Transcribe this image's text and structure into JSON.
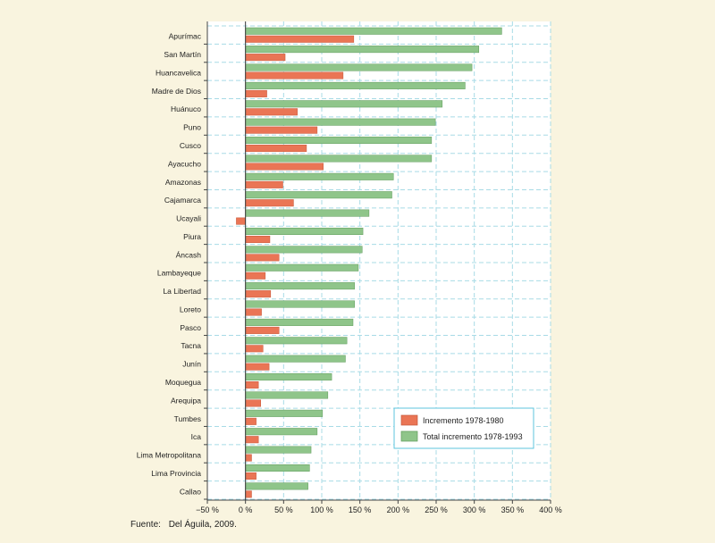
{
  "chart_data": {
    "type": "bar",
    "orientation": "horizontal",
    "categories": [
      "Apurímac",
      "San Martín",
      "Huancavelica",
      "Madre de Dios",
      "Huánuco",
      "Puno",
      "Cusco",
      "Ayacucho",
      "Amazonas",
      "Cajamarca",
      "Ucayali",
      "Piura",
      "Áncash",
      "Lambayeque",
      "La Libertad",
      "Loreto",
      "Pasco",
      "Tacna",
      "Junín",
      "Moquegua",
      "Arequipa",
      "Tumbes",
      "Ica",
      "Lima Metropolitana",
      "Lima Provincia",
      "Callao"
    ],
    "series": [
      {
        "name": "Total incremento 1978-1993",
        "color": "#8fc58a",
        "values": [
          336,
          306,
          297,
          288,
          258,
          249,
          244,
          244,
          194,
          192,
          162,
          154,
          153,
          148,
          143,
          143,
          141,
          133,
          131,
          113,
          108,
          101,
          94,
          86,
          84,
          82
        ]
      },
      {
        "name": "Incremento 1978-1980",
        "color": "#ea7555",
        "values": [
          142,
          52,
          128,
          28,
          68,
          94,
          80,
          102,
          49,
          63,
          -12,
          32,
          44,
          26,
          33,
          21,
          44,
          23,
          31,
          17,
          20,
          14,
          17,
          8,
          14,
          8
        ]
      }
    ],
    "xlim": [
      -50,
      400
    ],
    "xticks": [
      "−50 %",
      "0 %",
      "50 %",
      "100 %",
      "150 %",
      "200 %",
      "250 %",
      "300 %",
      "350 %",
      "400 %"
    ],
    "xtick_values": [
      -50,
      0,
      50,
      100,
      150,
      200,
      250,
      300,
      350,
      400
    ],
    "grid": true,
    "legend_position": "lower-right",
    "legend": [
      "Incremento 1978-1980",
      "Total incremento 1978-1993"
    ]
  },
  "source": {
    "label": "Fuente:",
    "text": "Del Águila, 2009."
  },
  "colors": {
    "background": "#f9f4df",
    "plot_background": "#ffffff",
    "grid": "#a8dbe6",
    "legend_border": "#5cc4de"
  }
}
